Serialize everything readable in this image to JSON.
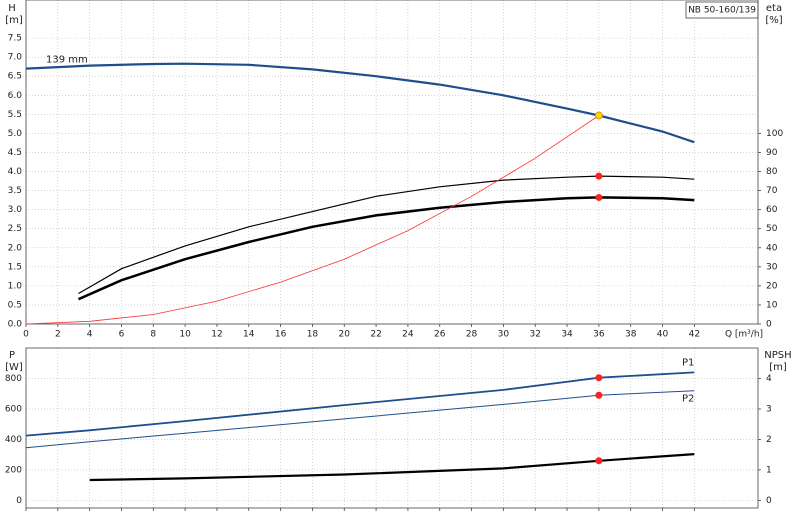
{
  "chart_data": [
    {
      "type": "line",
      "title": "NB 50-160/139",
      "y_label": "H",
      "y_unit": "[m]",
      "y2_label": "eta",
      "y2_unit": "[%]",
      "x_label": "Q [m³/h]",
      "xlim": [
        0,
        46
      ],
      "xticks": [
        0,
        2,
        4,
        6,
        8,
        10,
        12,
        14,
        16,
        18,
        20,
        22,
        24,
        26,
        28,
        30,
        32,
        34,
        36,
        38,
        40,
        42
      ],
      "ylim": [
        0,
        8.5
      ],
      "yticks": [
        0.0,
        0.5,
        1.0,
        1.5,
        2.0,
        2.5,
        3.0,
        3.5,
        4.0,
        4.5,
        5.0,
        5.5,
        6.0,
        6.5,
        7.0,
        7.5
      ],
      "ytick_labels": [
        "0.0",
        "0.5",
        "1.0",
        "1.5",
        "2.0",
        "2.5",
        "3.0",
        "3.5",
        "4.0",
        "4.5",
        "5.0",
        "5.5",
        "6.0",
        "6.5",
        "7.0",
        "7.5"
      ],
      "y2lim": [
        0,
        170
      ],
      "y2ticks": [
        0,
        10,
        20,
        30,
        40,
        50,
        60,
        70,
        80,
        90,
        100
      ],
      "grid": true,
      "series": [
        {
          "name": "139 mm",
          "color": "#1f4e8c",
          "width": 2.2,
          "x": [
            0,
            4,
            8,
            10,
            14,
            18,
            22,
            26,
            30,
            34,
            36,
            40,
            42
          ],
          "values": [
            6.7,
            6.78,
            6.82,
            6.83,
            6.8,
            6.68,
            6.5,
            6.28,
            6.0,
            5.65,
            5.47,
            5.05,
            4.77
          ]
        },
        {
          "color": "#000000",
          "width": 1.2,
          "axis": "y2",
          "x": [
            3.3,
            6,
            10,
            14,
            18,
            22,
            26,
            30,
            34,
            36,
            40,
            42
          ],
          "values": [
            16,
            29,
            41,
            51,
            59,
            67,
            72,
            75.5,
            77,
            77.6,
            77,
            76
          ]
        },
        {
          "color": "#000000",
          "width": 2.5,
          "axis": "y2",
          "x": [
            3.3,
            6,
            10,
            14,
            18,
            22,
            26,
            30,
            34,
            36,
            40,
            42
          ],
          "values": [
            13,
            23,
            34,
            43,
            51,
            57,
            61,
            64,
            66,
            66.4,
            66,
            65
          ]
        },
        {
          "color": "#ff3030",
          "width": 0.8,
          "x": [
            0,
            4,
            8,
            12,
            16,
            20,
            24,
            28,
            32,
            36
          ],
          "values": [
            0,
            0.07,
            0.25,
            0.6,
            1.1,
            1.7,
            2.45,
            3.35,
            4.35,
            5.47
          ]
        }
      ],
      "markers": [
        {
          "x": 36,
          "y": 5.47,
          "color": "#ffd700"
        },
        {
          "x": 36,
          "y": 77.6,
          "color": "#ff2020",
          "axis": "y2"
        },
        {
          "x": 36,
          "y": 66.4,
          "color": "#ff2020",
          "axis": "y2"
        }
      ]
    },
    {
      "type": "line",
      "y_label": "P",
      "y_unit": "[W]",
      "y2_label": "NPSH",
      "y2_unit": "[m]",
      "xlim": [
        0,
        46
      ],
      "ylim": [
        -50,
        1000
      ],
      "yticks": [
        0,
        200,
        400,
        600,
        800
      ],
      "y2lim": [
        -0.25,
        5
      ],
      "y2ticks": [
        0,
        1,
        2,
        3,
        4
      ],
      "grid": true,
      "series": [
        {
          "name": "P1",
          "color": "#1f4e8c",
          "width": 1.8,
          "x": [
            0,
            4,
            10,
            20,
            30,
            36,
            42
          ],
          "values": [
            425,
            460,
            520,
            625,
            725,
            805,
            840
          ]
        },
        {
          "name": "P2",
          "color": "#1f4e8c",
          "width": 1.0,
          "x": [
            0,
            4,
            10,
            20,
            30,
            36,
            42
          ],
          "values": [
            345,
            385,
            440,
            535,
            630,
            690,
            720
          ]
        },
        {
          "color": "#000000",
          "width": 2.2,
          "axis": "y2",
          "x": [
            4,
            10,
            20,
            30,
            36,
            42
          ],
          "values": [
            0.67,
            0.72,
            0.85,
            1.05,
            1.3,
            1.52
          ]
        }
      ],
      "markers": [
        {
          "x": 36,
          "y": 805,
          "color": "#ff2020"
        },
        {
          "x": 36,
          "y": 690,
          "color": "#ff2020"
        },
        {
          "x": 36,
          "y": 1.3,
          "color": "#ff2020",
          "axis": "y2"
        }
      ]
    }
  ]
}
